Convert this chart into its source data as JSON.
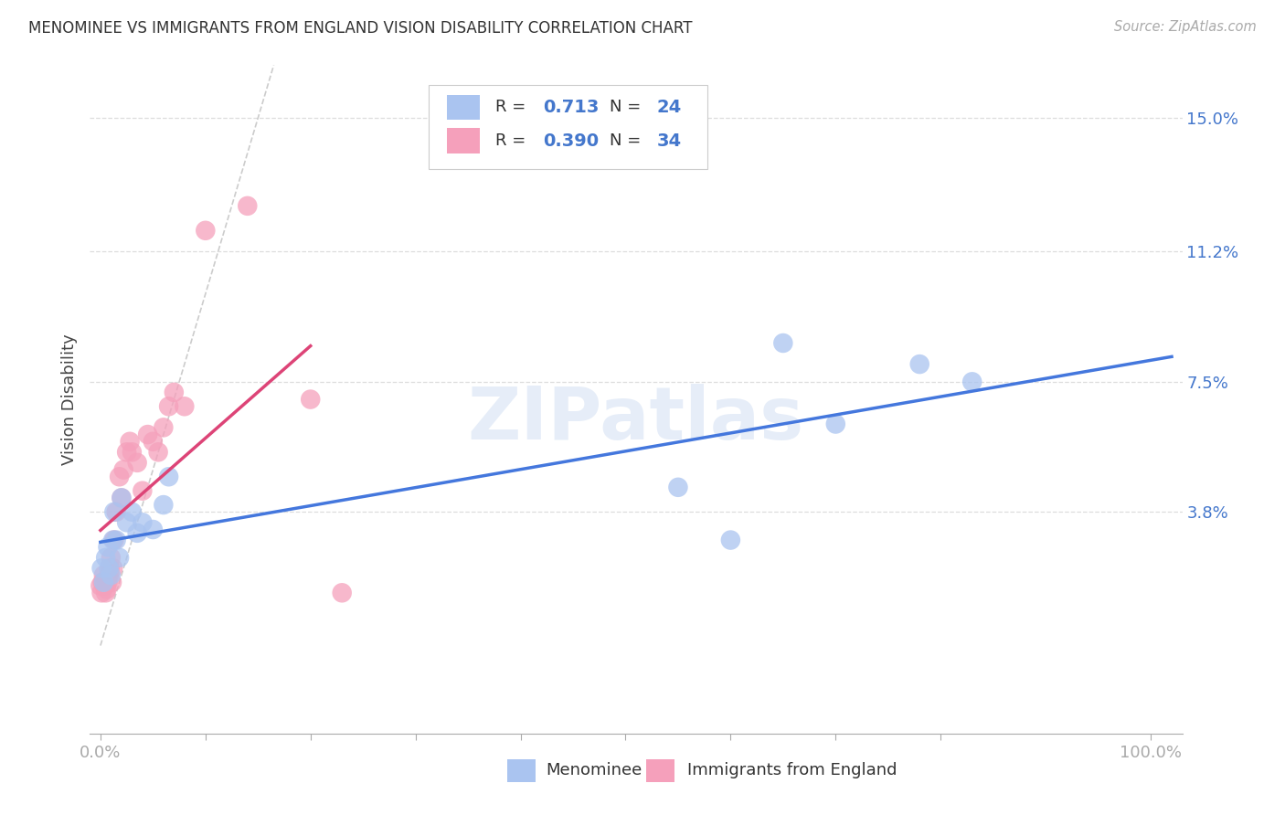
{
  "title": "MENOMINEE VS IMMIGRANTS FROM ENGLAND VISION DISABILITY CORRELATION CHART",
  "source": "Source: ZipAtlas.com",
  "ylabel": "Vision Disability",
  "ytick_labels": [
    "15.0%",
    "11.2%",
    "7.5%",
    "3.8%"
  ],
  "ytick_vals": [
    0.15,
    0.112,
    0.075,
    0.038
  ],
  "xtick_labels": [
    "0.0%",
    "",
    "",
    "",
    "",
    "",
    "",
    "",
    "",
    "100.0%"
  ],
  "xtick_vals": [
    0.0,
    0.1,
    0.2,
    0.3,
    0.4,
    0.5,
    0.6,
    0.7,
    0.8,
    1.0
  ],
  "xlim": [
    -0.01,
    1.03
  ],
  "ylim": [
    -0.025,
    0.165
  ],
  "background_color": "#ffffff",
  "grid_color": "#dddddd",
  "diagonal_line_color": "#cccccc",
  "menominee_color": "#aac4f0",
  "england_color": "#f5a0bb",
  "menominee_line_color": "#4477dd",
  "england_line_color": "#dd4477",
  "legend_R1": "0.713",
  "legend_N1": "24",
  "legend_R2": "0.390",
  "legend_N2": "34",
  "watermark": "ZIPatlas",
  "menominee_x": [
    0.001,
    0.003,
    0.005,
    0.007,
    0.008,
    0.01,
    0.012,
    0.013,
    0.015,
    0.018,
    0.02,
    0.025,
    0.03,
    0.035,
    0.04,
    0.05,
    0.06,
    0.065,
    0.55,
    0.6,
    0.65,
    0.7,
    0.78,
    0.83
  ],
  "menominee_y": [
    0.022,
    0.018,
    0.025,
    0.028,
    0.022,
    0.02,
    0.03,
    0.038,
    0.03,
    0.025,
    0.042,
    0.035,
    0.038,
    0.032,
    0.035,
    0.033,
    0.04,
    0.048,
    0.045,
    0.03,
    0.086,
    0.063,
    0.08,
    0.075
  ],
  "england_x": [
    0.0,
    0.001,
    0.002,
    0.003,
    0.004,
    0.005,
    0.006,
    0.007,
    0.008,
    0.009,
    0.01,
    0.011,
    0.012,
    0.013,
    0.015,
    0.018,
    0.02,
    0.022,
    0.025,
    0.028,
    0.03,
    0.035,
    0.04,
    0.045,
    0.05,
    0.055,
    0.06,
    0.065,
    0.07,
    0.08,
    0.1,
    0.14,
    0.2,
    0.23
  ],
  "england_y": [
    0.017,
    0.015,
    0.018,
    0.02,
    0.017,
    0.015,
    0.016,
    0.018,
    0.02,
    0.022,
    0.025,
    0.018,
    0.022,
    0.03,
    0.038,
    0.048,
    0.042,
    0.05,
    0.055,
    0.058,
    0.055,
    0.052,
    0.044,
    0.06,
    0.058,
    0.055,
    0.062,
    0.068,
    0.072,
    0.068,
    0.118,
    0.125,
    0.07,
    0.015
  ]
}
